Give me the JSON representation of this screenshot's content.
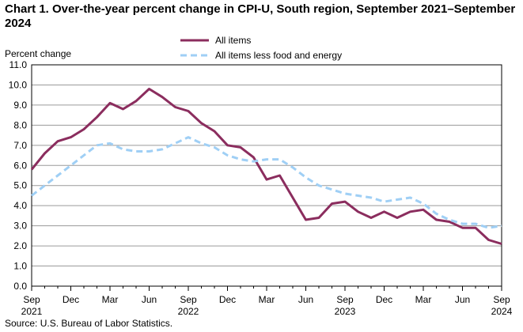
{
  "title": "Chart 1. Over-the-year percent change in CPI-U, South region, September 2021–September 2024",
  "source": "Source: U.S. Bureau of Labor Statistics.",
  "chart_data": {
    "type": "line",
    "ylabel": "Percent change",
    "ylim": [
      0,
      11
    ],
    "yticks": [
      "0.0",
      "1.0",
      "2.0",
      "3.0",
      "4.0",
      "5.0",
      "6.0",
      "7.0",
      "8.0",
      "9.0",
      "10.0",
      "11.0"
    ],
    "grid": true,
    "legend_position": "top-center",
    "x": [
      "Sep 2021",
      "Oct 2021",
      "Nov 2021",
      "Dec 2021",
      "Jan 2022",
      "Feb 2022",
      "Mar 2022",
      "Apr 2022",
      "May 2022",
      "Jun 2022",
      "Jul 2022",
      "Aug 2022",
      "Sep 2022",
      "Oct 2022",
      "Nov 2022",
      "Dec 2022",
      "Jan 2023",
      "Feb 2023",
      "Mar 2023",
      "Apr 2023",
      "May 2023",
      "Jun 2023",
      "Jul 2023",
      "Aug 2023",
      "Sep 2023",
      "Oct 2023",
      "Nov 2023",
      "Dec 2023",
      "Jan 2024",
      "Feb 2024",
      "Mar 2024",
      "Apr 2024",
      "May 2024",
      "Jun 2024",
      "Jul 2024",
      "Aug 2024",
      "Sep 2024"
    ],
    "xtick_labels": [
      {
        "month": "Sep",
        "year": "2021"
      },
      {
        "month": "Dec",
        "year": ""
      },
      {
        "month": "Mar",
        "year": ""
      },
      {
        "month": "Jun",
        "year": ""
      },
      {
        "month": "Sep",
        "year": "2022"
      },
      {
        "month": "Dec",
        "year": ""
      },
      {
        "month": "Mar",
        "year": ""
      },
      {
        "month": "Jun",
        "year": ""
      },
      {
        "month": "Sep",
        "year": "2023"
      },
      {
        "month": "Dec",
        "year": ""
      },
      {
        "month": "Mar",
        "year": ""
      },
      {
        "month": "Jun",
        "year": ""
      },
      {
        "month": "Sep",
        "year": "2024"
      }
    ],
    "series": [
      {
        "name": "All items",
        "color": "#8b2d5e",
        "style": "solid",
        "values": [
          5.8,
          6.6,
          7.2,
          7.4,
          7.8,
          8.4,
          9.1,
          8.8,
          9.2,
          9.8,
          9.4,
          8.9,
          8.7,
          8.1,
          7.7,
          7.0,
          6.9,
          6.4,
          5.3,
          5.5,
          4.4,
          3.3,
          3.4,
          4.1,
          4.2,
          3.7,
          3.4,
          3.7,
          3.4,
          3.7,
          3.8,
          3.3,
          3.2,
          2.9,
          2.9,
          2.3,
          2.1
        ]
      },
      {
        "name": "All items less food and energy",
        "color": "#9fcff5",
        "style": "dashed",
        "values": [
          4.5,
          5.0,
          5.5,
          6.0,
          6.5,
          7.0,
          7.1,
          6.8,
          6.7,
          6.7,
          6.8,
          7.1,
          7.4,
          7.1,
          6.9,
          6.5,
          6.3,
          6.2,
          6.3,
          6.3,
          5.9,
          5.4,
          5.0,
          4.8,
          4.6,
          4.5,
          4.4,
          4.2,
          4.3,
          4.4,
          4.1,
          3.6,
          3.3,
          3.1,
          3.1,
          2.9,
          3.0
        ]
      }
    ]
  }
}
